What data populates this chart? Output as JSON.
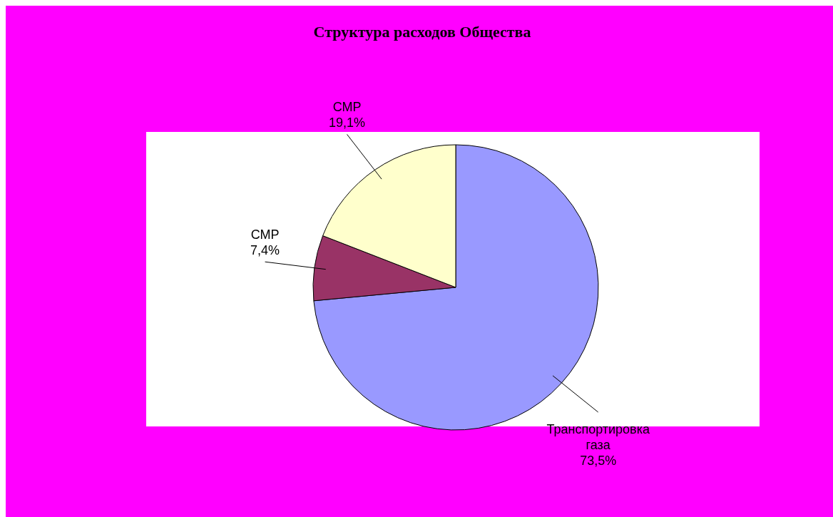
{
  "chart_data": {
    "type": "pie",
    "title": "Структура расходов Общества",
    "categories": [
      "Транспортировка газа",
      "СМР",
      "СМР"
    ],
    "values": [
      73.5,
      7.4,
      19.1
    ],
    "colors": [
      "#9999ff",
      "#993366",
      "#ffffcc"
    ],
    "value_labels": [
      "73,5%",
      "7,4%",
      "19,1%"
    ],
    "legend": false
  }
}
